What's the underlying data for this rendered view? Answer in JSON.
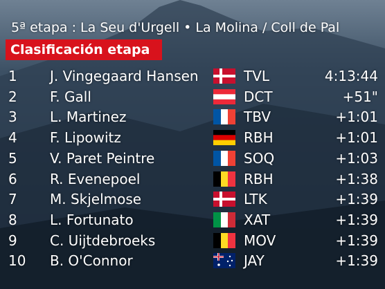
{
  "header": {
    "title": "5ª etapa : La Seu d'Urgell • La Molina / Coll de Pal",
    "subtitle": "Clasificación etapa"
  },
  "table": {
    "rows": [
      [
        1,
        "J. Vingegaard Hansen",
        "TVL",
        "4:13:44"
      ],
      [
        2,
        "F. Gall",
        "DCT",
        "+51\""
      ],
      [
        3,
        "L. Martinez",
        "TBV",
        "+1:01"
      ],
      [
        4,
        "F. Lipowitz",
        "RBH",
        "+1:01"
      ],
      [
        5,
        "V. Paret Peintre",
        "SOQ",
        "+1:03"
      ],
      [
        6,
        "R. Evenepoel",
        "RBH",
        "+1:38"
      ],
      [
        7,
        "M. Skjelmose",
        "LTK",
        "+1:39"
      ],
      [
        8,
        "L. Fortunato",
        "XAT",
        "+1:39"
      ],
      [
        9,
        "C. Uijtdebroeks",
        "MOV",
        "+1:39"
      ],
      [
        10,
        "B. O'Connor",
        "JAY",
        "+1:39"
      ]
    ]
  }
}
